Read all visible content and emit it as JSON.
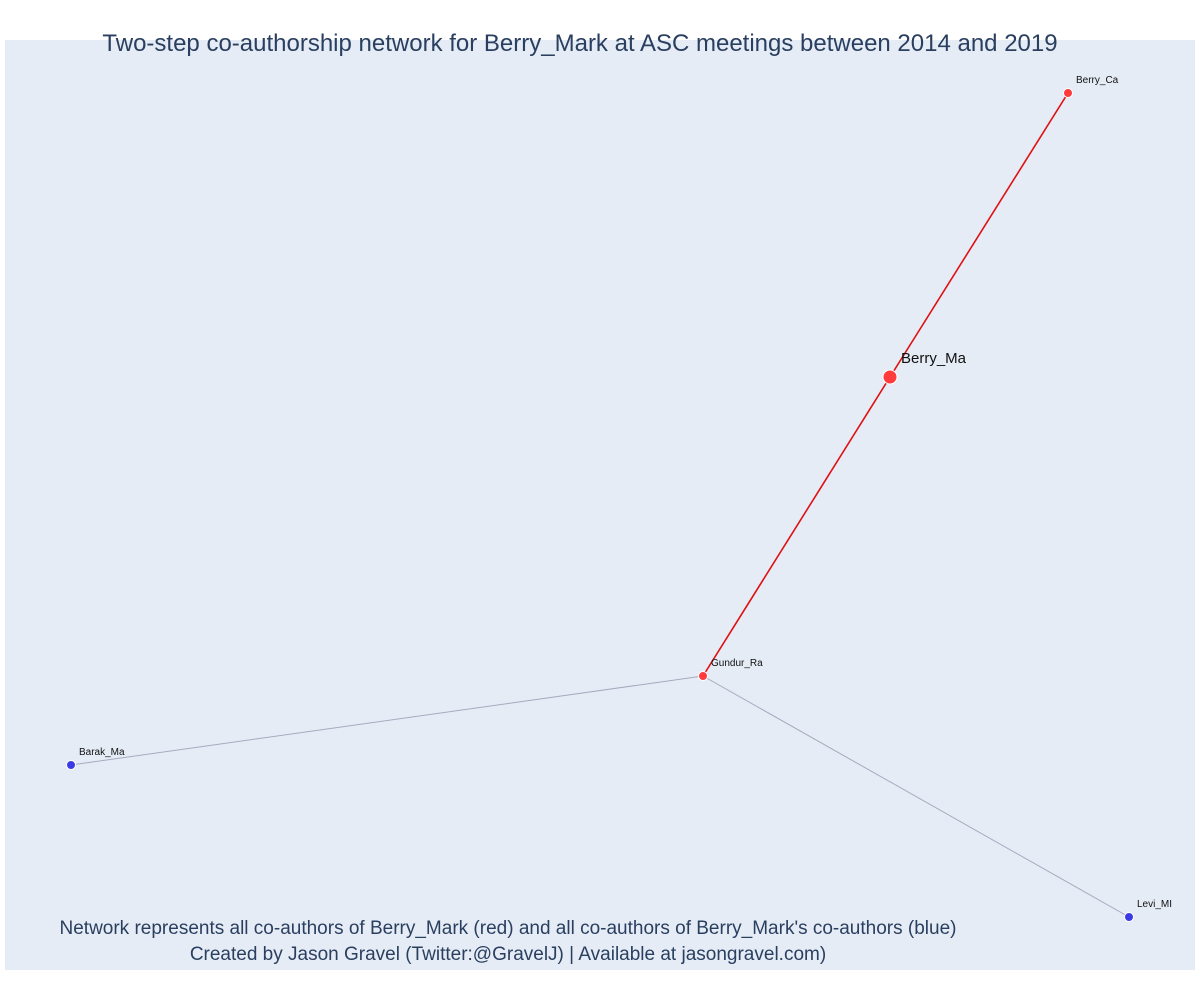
{
  "title": "Two-step co-authorship network for Berry_Mark at ASC meetings between 2014 and 2019",
  "caption_lines": [
    "Network represents all co-authors of Berry_Mark (red) and all co-authors of Berry_Mark's co-authors (blue)",
    "Created by Jason Gravel (Twitter:@GravelJ) | Available at jasongravel.com)"
  ],
  "colors": {
    "plot_background": "#e5ecf6",
    "direct_coauthor": "#ff3b3b",
    "second_step_coauthor": "#3b3be6",
    "direct_edge": "#e01010",
    "second_step_edge": "#a9a9bf",
    "title_text": "#2a3f5f"
  },
  "chart_data": {
    "type": "network",
    "nodes": [
      {
        "id": "Berry_Ma",
        "label": "Berry_Ma",
        "group": "direct",
        "is_focus": true
      },
      {
        "id": "Berry_Ca",
        "label": "Berry_Ca",
        "group": "direct",
        "is_focus": false
      },
      {
        "id": "Gundur_Ra",
        "label": "Gundur_Ra",
        "group": "direct",
        "is_focus": false
      },
      {
        "id": "Barak_Ma",
        "label": "Barak_Ma",
        "group": "second_step",
        "is_focus": false
      },
      {
        "id": "Levi_Mi",
        "label": "Levi_MI",
        "group": "second_step",
        "is_focus": false
      }
    ],
    "edges": [
      {
        "source": "Berry_Ma",
        "target": "Berry_Ca",
        "type": "direct"
      },
      {
        "source": "Berry_Ma",
        "target": "Gundur_Ra",
        "type": "direct"
      },
      {
        "source": "Gundur_Ra",
        "target": "Barak_Ma",
        "type": "second_step"
      },
      {
        "source": "Gundur_Ra",
        "target": "Levi_Mi",
        "type": "second_step"
      }
    ]
  }
}
